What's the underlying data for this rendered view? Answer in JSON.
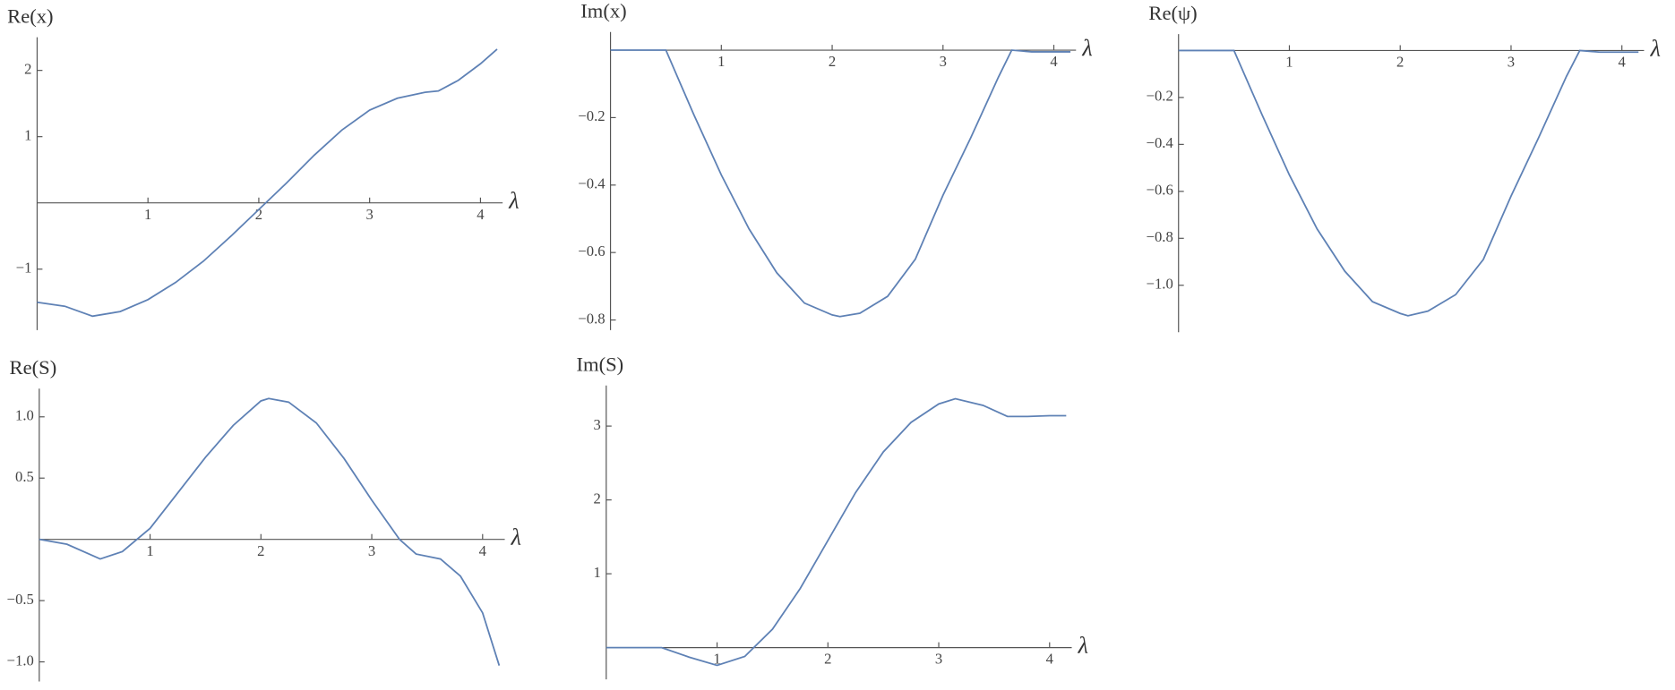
{
  "chart_data": [
    {
      "type": "line",
      "title": "Re(x)",
      "x_label": "λ",
      "x": [
        0,
        0.25,
        0.5,
        0.75,
        1,
        1.25,
        1.5,
        1.75,
        2,
        2.25,
        2.5,
        2.75,
        3,
        3.25,
        3.5,
        3.62,
        3.8,
        4,
        4.15
      ],
      "series": [
        {
          "color": "#5e81b5",
          "values": [
            -1.5,
            -1.56,
            -1.71,
            -1.64,
            -1.46,
            -1.2,
            -0.88,
            -0.5,
            -0.1,
            0.3,
            0.72,
            1.1,
            1.4,
            1.58,
            1.67,
            1.69,
            1.85,
            2.1,
            2.32
          ]
        }
      ],
      "xlim": [
        0,
        4.2
      ],
      "ylim": [
        -1.92,
        2.5
      ],
      "xticks": [
        1,
        2,
        3,
        4
      ],
      "yticks": [
        {
          "value": -1,
          "label": "−1"
        },
        1,
        2
      ]
    },
    {
      "type": "line",
      "title": "Im(x)",
      "x_label": "λ",
      "x": [
        0,
        0.25,
        0.5,
        0.75,
        1,
        1.25,
        1.5,
        1.75,
        2,
        2.07,
        2.25,
        2.5,
        2.75,
        3,
        3.25,
        3.5,
        3.62,
        3.8,
        4,
        4.15
      ],
      "series": [
        {
          "color": "#5e81b5",
          "values": [
            0,
            0,
            0,
            -0.19,
            -0.37,
            -0.53,
            -0.66,
            -0.75,
            -0.785,
            -0.79,
            -0.78,
            -0.73,
            -0.62,
            -0.43,
            -0.26,
            -0.08,
            0,
            -0.005,
            -0.005,
            -0.005
          ]
        }
      ],
      "xlim": [
        0,
        4.2
      ],
      "ylim": [
        -0.83,
        0.054
      ],
      "xticks": [
        1,
        2,
        3,
        4
      ],
      "yticks": [
        {
          "value": -0.8,
          "label": "−0.8"
        },
        {
          "value": -0.6,
          "label": "−0.6"
        },
        {
          "value": -0.4,
          "label": "−0.4"
        },
        {
          "value": -0.2,
          "label": "−0.2"
        }
      ]
    },
    {
      "type": "line",
      "title": "Re(ψ)",
      "x_label": "λ",
      "x": [
        0,
        0.25,
        0.5,
        0.75,
        1,
        1.25,
        1.5,
        1.75,
        2,
        2.07,
        2.25,
        2.5,
        2.75,
        3,
        3.25,
        3.5,
        3.62,
        3.8,
        4,
        4.15
      ],
      "series": [
        {
          "color": "#5e81b5",
          "values": [
            0,
            0,
            0,
            -0.27,
            -0.53,
            -0.76,
            -0.94,
            -1.07,
            -1.12,
            -1.13,
            -1.11,
            -1.04,
            -0.89,
            -0.62,
            -0.37,
            -0.11,
            0,
            -0.007,
            -0.007,
            -0.007
          ]
        }
      ],
      "xlim": [
        0,
        4.2
      ],
      "ylim": [
        -1.2,
        0.07
      ],
      "xticks": [
        1,
        2,
        3,
        4
      ],
      "yticks": [
        {
          "value": -1,
          "label": "−1.0"
        },
        {
          "value": -0.8,
          "label": "−0.8"
        },
        {
          "value": -0.6,
          "label": "−0.6"
        },
        {
          "value": -0.4,
          "label": "−0.4"
        },
        {
          "value": -0.2,
          "label": "−0.2"
        }
      ]
    },
    {
      "type": "line",
      "title": "Re(S)",
      "x_label": "λ",
      "x": [
        0,
        0.25,
        0.55,
        0.75,
        1,
        1.25,
        1.5,
        1.75,
        2,
        2.07,
        2.25,
        2.5,
        2.75,
        3,
        3.25,
        3.4,
        3.62,
        3.8,
        4,
        4.15
      ],
      "series": [
        {
          "color": "#5e81b5",
          "values": [
            0,
            -0.04,
            -0.16,
            -0.1,
            0.09,
            0.38,
            0.67,
            0.93,
            1.13,
            1.15,
            1.12,
            0.95,
            0.66,
            0.32,
            0,
            -0.12,
            -0.16,
            -0.3,
            -0.6,
            -1.03
          ]
        }
      ],
      "xlim": [
        0,
        4.2
      ],
      "ylim": [
        -1.16,
        1.23
      ],
      "xticks": [
        1,
        2,
        3,
        4
      ],
      "yticks": [
        {
          "value": -1,
          "label": "−1.0"
        },
        {
          "value": -0.5,
          "label": "−0.5"
        },
        0.5,
        {
          "value": 1,
          "label": "1.0"
        }
      ]
    },
    {
      "type": "line",
      "title": "Im(S)",
      "x_label": "λ",
      "x": [
        0,
        0.25,
        0.5,
        0.75,
        1,
        1.25,
        1.5,
        1.75,
        2,
        2.25,
        2.5,
        2.75,
        3,
        3.15,
        3.4,
        3.62,
        3.8,
        4,
        4.15
      ],
      "series": [
        {
          "color": "#5e81b5",
          "values": [
            0,
            0,
            0,
            -0.13,
            -0.24,
            -0.12,
            0.25,
            0.8,
            1.45,
            2.1,
            2.65,
            3.05,
            3.3,
            3.37,
            3.28,
            3.13,
            3.13,
            3.14,
            3.14
          ]
        }
      ],
      "xlim": [
        0,
        4.2
      ],
      "ylim": [
        -0.43,
        3.55
      ],
      "xticks": [
        1,
        2,
        3,
        4
      ],
      "yticks": [
        1,
        2,
        3
      ]
    }
  ]
}
